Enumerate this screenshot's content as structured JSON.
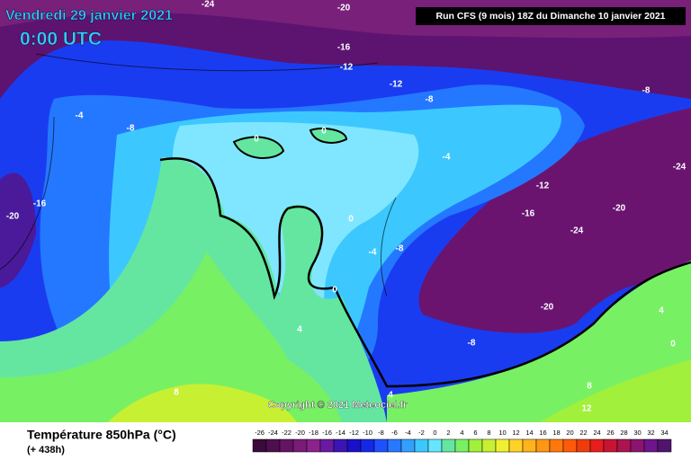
{
  "header": {
    "date": "Vendredi 29 janvier 2021",
    "time": "0:00 UTC",
    "run": "Run CFS (9 mois) 18Z du Dimanche 10 janvier 2021"
  },
  "map": {
    "contour_labels": [
      -24,
      -20,
      -16,
      -12,
      -12,
      -8,
      -8,
      -4,
      -8,
      0,
      0,
      -4,
      -12,
      -24,
      -20,
      -16,
      -16,
      -20,
      -24,
      0,
      -8,
      -4,
      0,
      -20,
      4,
      4,
      -8,
      0,
      8,
      4,
      8,
      12
    ]
  },
  "copyright": "Copyright © 2021 Meteociel.fr",
  "footer": {
    "title": "Température 850hPa (°C)",
    "subtitle": "(+ 438h)"
  },
  "colorbar": {
    "ticks": [
      -26,
      -24,
      -22,
      -20,
      -18,
      -16,
      -14,
      -12,
      -10,
      -8,
      -6,
      -4,
      -2,
      0,
      2,
      4,
      6,
      8,
      10,
      12,
      14,
      16,
      18,
      20,
      22,
      24,
      26,
      28,
      30,
      32,
      34
    ],
    "colors": [
      "#3a0a3a",
      "#4e0f4e",
      "#641464",
      "#781c78",
      "#8c228c",
      "#6a1aa0",
      "#3c14b4",
      "#1a10c8",
      "#1428e6",
      "#1e50ff",
      "#2878ff",
      "#32a0ff",
      "#3cc8ff",
      "#64e6ff",
      "#64e6a0",
      "#78f064",
      "#a0f03c",
      "#c8f032",
      "#f0f032",
      "#ffd228",
      "#ffb41e",
      "#ff9614",
      "#ff780a",
      "#ff5a0a",
      "#f03c0a",
      "#e61e1e",
      "#c81432",
      "#aa1450",
      "#8c146e",
      "#6e148c",
      "#50146e"
    ]
  }
}
